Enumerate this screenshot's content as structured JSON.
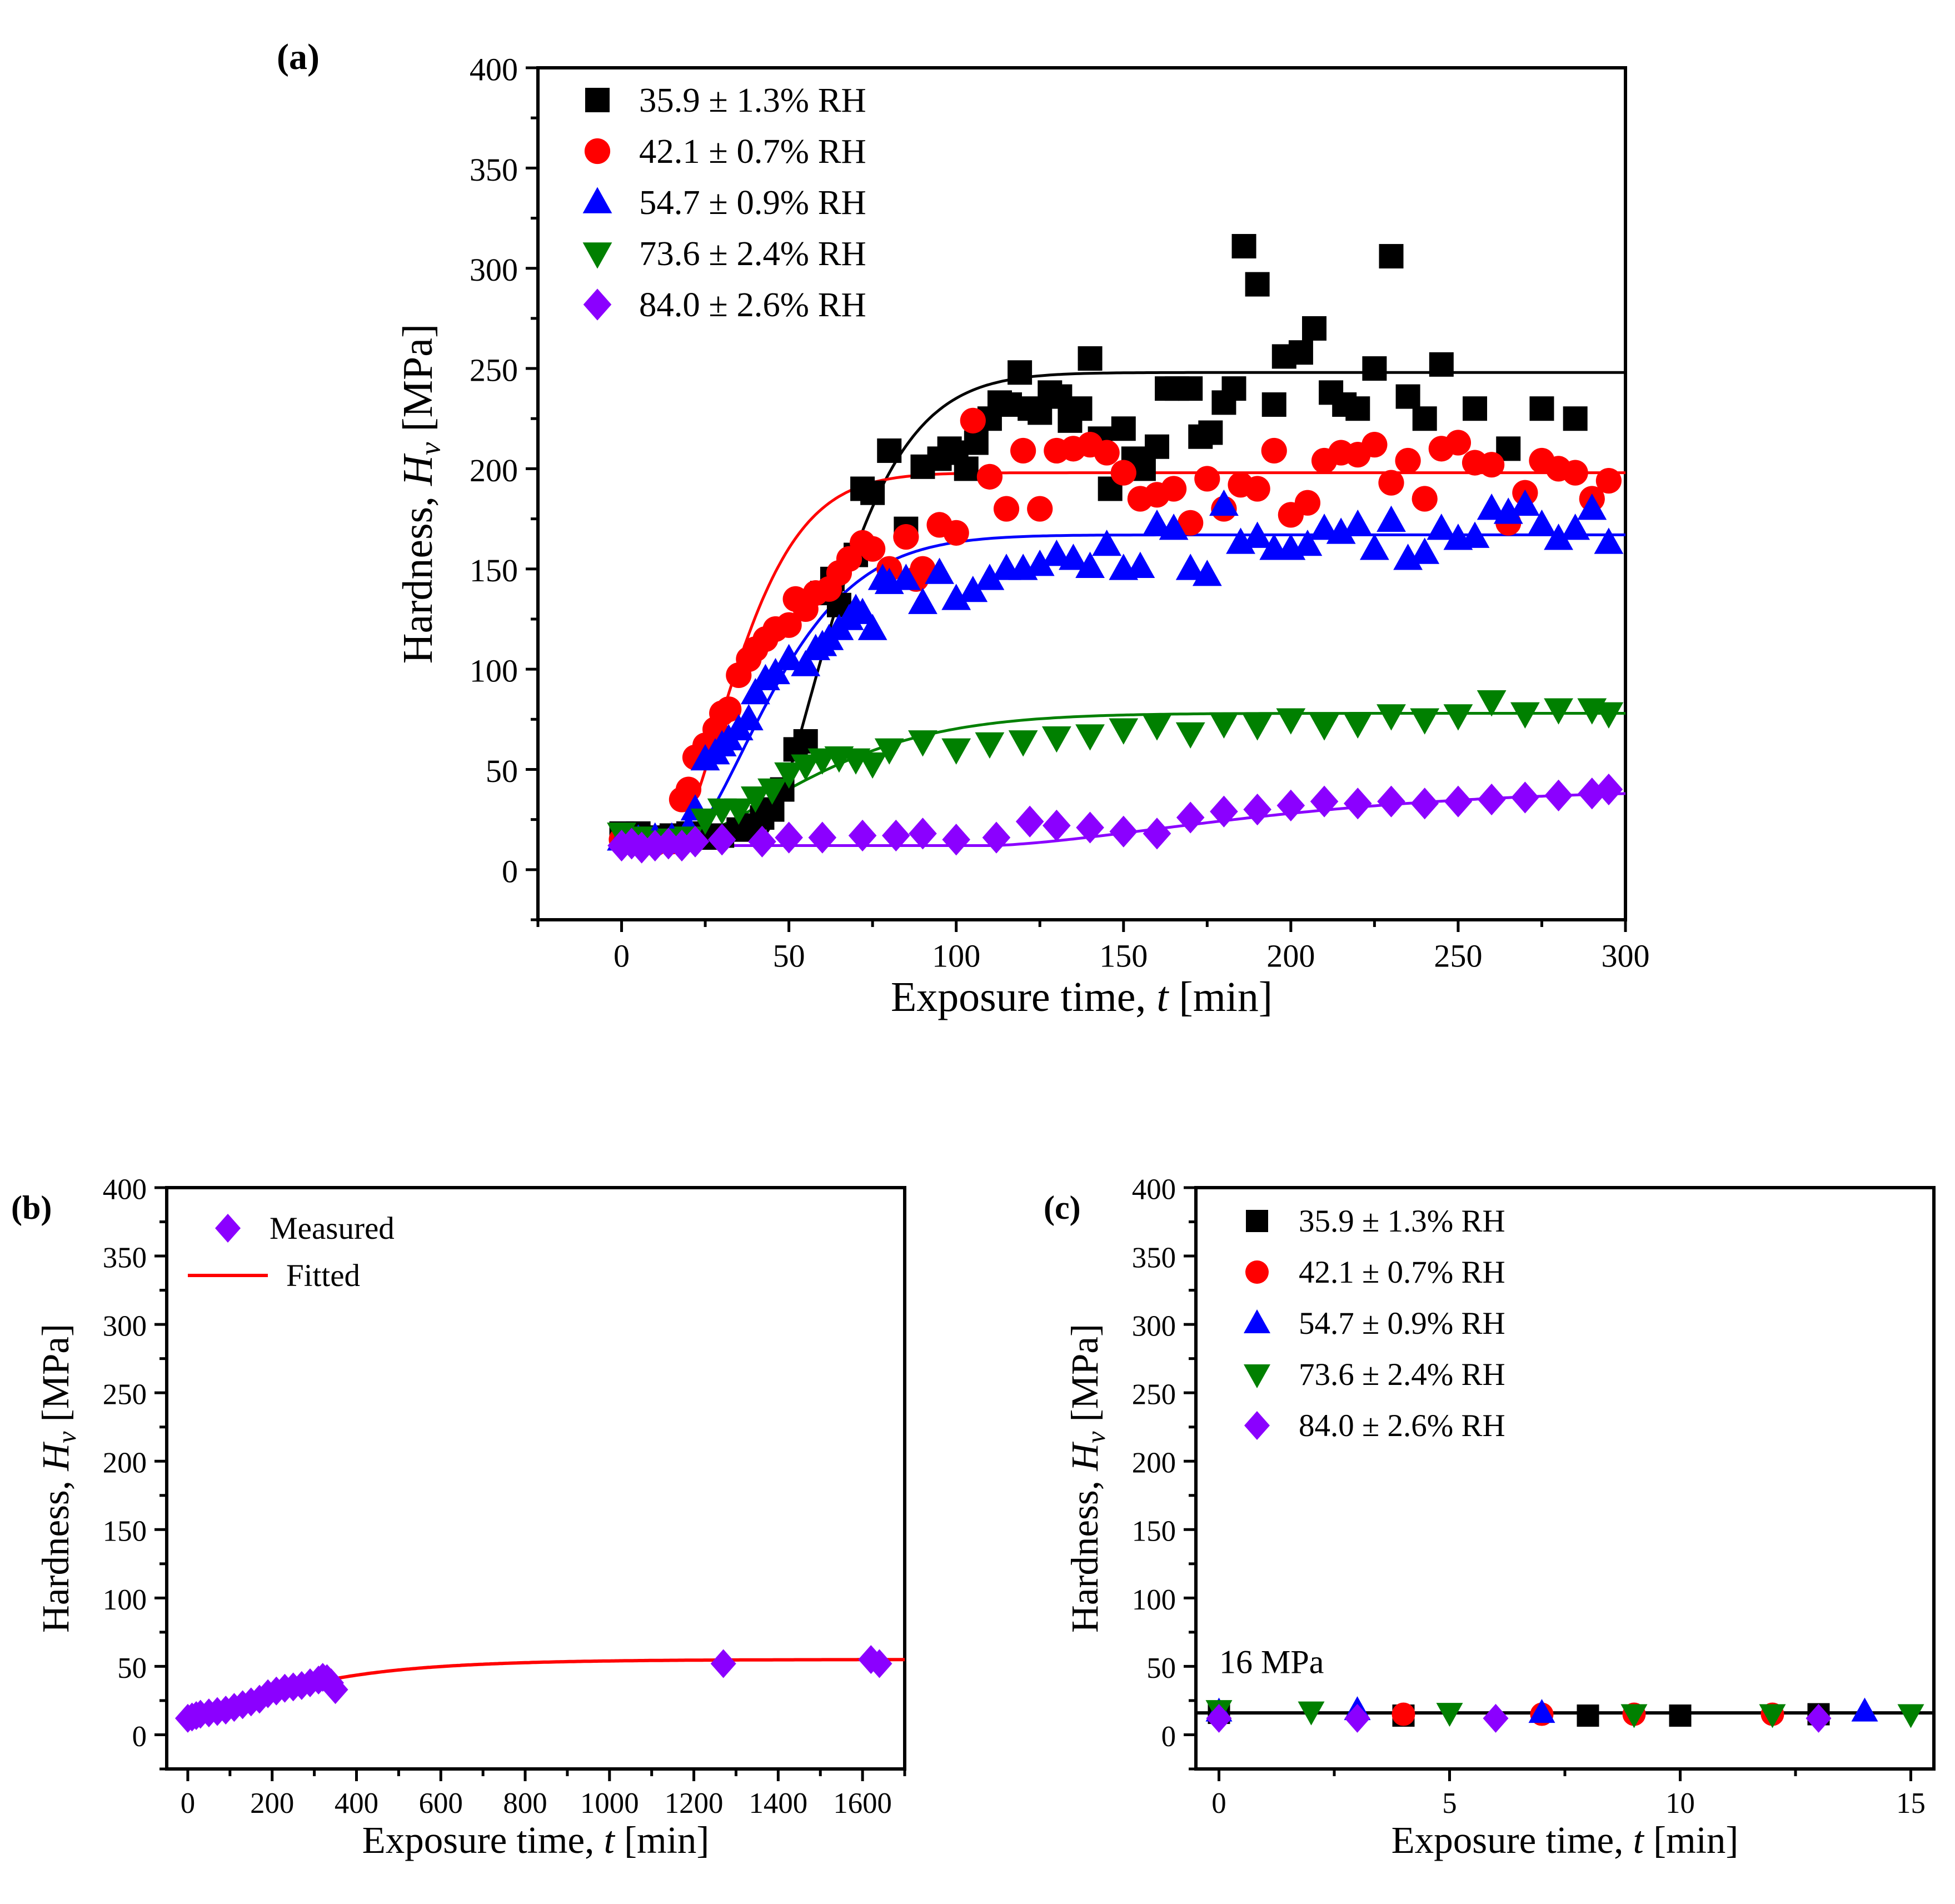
{
  "series_colors": {
    "s1": "#000000",
    "s2": "#ff0000",
    "s3": "#0000ff",
    "s4": "#008000",
    "s5": "#8b00ff",
    "fit": "#ff0000"
  },
  "chart_data": [
    {
      "panel_label": "(a)",
      "type": "scatter",
      "xlabel_prefix": "Exposure time, ",
      "xlabel_var": "t",
      "xlabel_suffix": " [min]",
      "ylabel_prefix": "Hardness, ",
      "ylabel_var": "H",
      "ylabel_sub": "v",
      "ylabel_suffix": " [MPa]",
      "xlim": [
        -25,
        300
      ],
      "ylim": [
        -25,
        400
      ],
      "xticks": [
        0,
        50,
        100,
        150,
        200,
        250,
        300
      ],
      "yticks": [
        0,
        50,
        100,
        150,
        200,
        250,
        300,
        350,
        400
      ],
      "legend_position": "top-left",
      "series": [
        {
          "name": "35.9 ± 1.3% RH",
          "marker": "square",
          "color": "#000000",
          "x": [
            0,
            5,
            10,
            15,
            20,
            25,
            30,
            35,
            38,
            42,
            45,
            48,
            52,
            55,
            60,
            63,
            65,
            70,
            72,
            75,
            80,
            85,
            90,
            95,
            98,
            100,
            103,
            106,
            110,
            113,
            116,
            119,
            122,
            125,
            128,
            131,
            134,
            137,
            140,
            143,
            146,
            150,
            153,
            156,
            160,
            163,
            166,
            170,
            173,
            176,
            180,
            183,
            186,
            190,
            195,
            198,
            203,
            207,
            212,
            216,
            220,
            225,
            230,
            235,
            240,
            245,
            255,
            265,
            275,
            285
          ],
          "y": [
            18,
            18,
            16,
            17,
            18,
            16,
            17,
            20,
            22,
            26,
            30,
            40,
            60,
            64,
            138,
            145,
            132,
            157,
            190,
            188,
            209,
            170,
            201,
            205,
            210,
            208,
            200,
            213,
            225,
            233,
            232,
            248,
            230,
            228,
            238,
            236,
            224,
            230,
            255,
            215,
            190,
            220,
            205,
            200,
            211,
            240,
            240,
            240,
            216,
            218,
            233,
            240,
            311,
            292,
            232,
            256,
            258,
            270,
            238,
            232,
            230,
            250,
            306,
            236,
            225,
            252,
            230,
            210,
            230,
            225
          ],
          "fit": {
            "type": "sigmoid",
            "plateau": 248,
            "start": 16,
            "t0": 42,
            "rate": 0.035
          }
        },
        {
          "name": "42.1 ± 0.7% RH",
          "marker": "circle",
          "color": "#ff0000",
          "x": [
            0,
            5,
            10,
            15,
            18,
            20,
            22,
            25,
            28,
            30,
            32,
            35,
            38,
            40,
            43,
            46,
            50,
            52,
            55,
            58,
            62,
            65,
            68,
            72,
            75,
            80,
            85,
            88,
            90,
            95,
            100,
            105,
            110,
            115,
            120,
            125,
            130,
            135,
            140,
            145,
            150,
            155,
            160,
            165,
            170,
            175,
            180,
            185,
            190,
            195,
            200,
            205,
            210,
            215,
            220,
            225,
            230,
            235,
            240,
            245,
            250,
            255,
            260,
            265,
            270,
            275,
            280,
            285,
            290,
            295
          ],
          "y": [
            15,
            14,
            13,
            14,
            35,
            40,
            56,
            62,
            70,
            78,
            80,
            97,
            105,
            110,
            115,
            120,
            122,
            135,
            130,
            138,
            140,
            148,
            155,
            163,
            160,
            150,
            166,
            145,
            150,
            172,
            168,
            224,
            196,
            180,
            209,
            180,
            209,
            210,
            212,
            208,
            198,
            185,
            187,
            190,
            173,
            195,
            180,
            192,
            190,
            209,
            177,
            183,
            204,
            208,
            207,
            212,
            193,
            204,
            185,
            210,
            213,
            203,
            202,
            173,
            188,
            204,
            200,
            198,
            185,
            194
          ],
          "fit": {
            "type": "sigmoid",
            "plateau": 198,
            "start": 14,
            "t0": 16,
            "rate": 0.04
          }
        },
        {
          "name": "54.7 ± 0.9% RH",
          "marker": "triangle-up",
          "color": "#0000ff",
          "x": [
            0,
            5,
            10,
            15,
            20,
            22,
            25,
            28,
            30,
            32,
            35,
            38,
            40,
            43,
            46,
            50,
            55,
            58,
            60,
            62,
            65,
            68,
            70,
            72,
            75,
            78,
            80,
            85,
            90,
            95,
            100,
            105,
            110,
            115,
            120,
            125,
            130,
            135,
            140,
            145,
            150,
            155,
            160,
            165,
            170,
            175,
            180,
            185,
            190,
            195,
            200,
            205,
            210,
            215,
            220,
            225,
            230,
            235,
            240,
            245,
            250,
            255,
            260,
            265,
            270,
            275,
            280,
            285,
            290,
            295
          ],
          "y": [
            15,
            15,
            16,
            16,
            20,
            30,
            55,
            58,
            62,
            65,
            70,
            75,
            88,
            95,
            98,
            105,
            102,
            110,
            112,
            115,
            120,
            125,
            130,
            128,
            120,
            145,
            143,
            145,
            133,
            148,
            135,
            139,
            145,
            150,
            150,
            152,
            157,
            155,
            151,
            162,
            150,
            151,
            172,
            170,
            150,
            147,
            182,
            163,
            166,
            160,
            160,
            162,
            170,
            168,
            172,
            160,
            174,
            155,
            158,
            170,
            165,
            166,
            180,
            178,
            182,
            172,
            165,
            170,
            180,
            163
          ],
          "fit": {
            "type": "sigmoid",
            "plateau": 167,
            "start": 16,
            "t0": 20,
            "rate": 0.03
          }
        },
        {
          "name": "73.6 ± 2.4% RH",
          "marker": "triangle-down",
          "color": "#008000",
          "x": [
            0,
            5,
            10,
            15,
            20,
            25,
            30,
            35,
            40,
            45,
            50,
            55,
            60,
            65,
            70,
            75,
            80,
            90,
            100,
            110,
            120,
            130,
            140,
            150,
            160,
            170,
            180,
            190,
            200,
            210,
            220,
            230,
            240,
            250,
            260,
            270,
            280,
            290,
            295
          ],
          "y": [
            18,
            16,
            14,
            15,
            16,
            25,
            30,
            30,
            36,
            40,
            48,
            52,
            55,
            56,
            55,
            53,
            60,
            64,
            60,
            63,
            64,
            66,
            67,
            70,
            72,
            68,
            73,
            72,
            75,
            72,
            73,
            77,
            75,
            77,
            84,
            78,
            80,
            80,
            78
          ],
          "fit": {
            "type": "sigmoid",
            "plateau": 78,
            "start": 15,
            "t0": 18,
            "rate": 0.02
          }
        },
        {
          "name": "84.0 ± 2.6% RH",
          "marker": "diamond",
          "color": "#8b00ff",
          "x": [
            0,
            3,
            6,
            10,
            14,
            18,
            22,
            30,
            42,
            50,
            60,
            72,
            82,
            90,
            100,
            112,
            122,
            130,
            140,
            150,
            160,
            170,
            180,
            190,
            200,
            210,
            220,
            230,
            240,
            250,
            260,
            270,
            280,
            290,
            295
          ],
          "y": [
            12,
            13,
            11,
            12,
            13,
            12,
            14,
            15,
            14,
            16,
            16,
            17,
            17,
            18,
            15,
            16,
            24,
            22,
            21,
            19,
            18,
            26,
            29,
            30,
            32,
            34,
            33,
            34,
            33,
            34,
            35,
            36,
            37,
            38,
            40
          ],
          "fit": {
            "type": "sigmoid",
            "plateau": 40,
            "start": 12,
            "t0": 110,
            "rate": 0.01
          }
        }
      ]
    },
    {
      "panel_label": "(b)",
      "type": "scatter",
      "xlabel_prefix": "Exposure time, ",
      "xlabel_var": "t",
      "xlabel_suffix": " [min]",
      "ylabel_prefix": "Hardness, ",
      "ylabel_var": "H",
      "ylabel_sub": "v",
      "ylabel_suffix": " [MPa]",
      "xlim": [
        -50,
        1700
      ],
      "ylim": [
        -25,
        400
      ],
      "xticks": [
        0,
        200,
        400,
        600,
        800,
        1000,
        1200,
        1400,
        1600
      ],
      "yticks": [
        0,
        50,
        100,
        150,
        200,
        250,
        300,
        350,
        400
      ],
      "legend_position": "top-left",
      "series": [
        {
          "name": "Measured",
          "marker": "diamond",
          "color": "#8b00ff",
          "x": [
            0,
            10,
            20,
            30,
            50,
            70,
            90,
            110,
            130,
            150,
            170,
            190,
            210,
            230,
            250,
            270,
            290,
            310,
            320,
            330,
            340,
            350,
            1270,
            1620,
            1640
          ],
          "y": [
            12,
            13,
            14,
            15,
            16,
            17,
            18,
            20,
            22,
            24,
            26,
            30,
            32,
            34,
            35,
            36,
            38,
            40,
            42,
            41,
            38,
            33,
            52,
            55,
            52
          ]
        }
      ],
      "fitted": {
        "name": "Fitted",
        "color": "#ff0000",
        "x_start": 120,
        "x_end": 1700,
        "plateau": 55,
        "start": 20,
        "rate": 0.004
      }
    },
    {
      "panel_label": "(c)",
      "type": "scatter",
      "xlabel_prefix": "Exposure time, ",
      "xlabel_var": "t",
      "xlabel_suffix": " [min]",
      "ylabel_prefix": "Hardness, ",
      "ylabel_var": "H",
      "ylabel_sub": "v",
      "ylabel_suffix": " [MPa]",
      "xlim": [
        -0.5,
        15.5
      ],
      "ylim": [
        -25,
        400
      ],
      "xticks": [
        0,
        5,
        10,
        15
      ],
      "yticks": [
        0,
        50,
        100,
        150,
        200,
        250,
        300,
        350,
        400
      ],
      "legend_position": "top-left",
      "annotation": "16 MPa",
      "reference_line": 16,
      "series": [
        {
          "name": "35.9 ± 1.3% RH",
          "marker": "square",
          "color": "#000000",
          "x": [
            0,
            4,
            8,
            10,
            13
          ],
          "y": [
            16,
            14,
            14,
            14,
            15
          ]
        },
        {
          "name": "42.1 ± 0.7% RH",
          "marker": "circle",
          "color": "#ff0000",
          "x": [
            4,
            7,
            9,
            12
          ],
          "y": [
            15,
            15,
            15,
            15
          ]
        },
        {
          "name": "54.7 ± 0.9% RH",
          "marker": "triangle-up",
          "color": "#0000ff",
          "x": [
            0,
            3,
            7,
            14
          ],
          "y": [
            17,
            18,
            16,
            17
          ]
        },
        {
          "name": "73.6 ± 2.4% RH",
          "marker": "triangle-down",
          "color": "#008000",
          "x": [
            0,
            2,
            5,
            9,
            12,
            15
          ],
          "y": [
            18,
            17,
            16,
            15,
            15,
            15
          ]
        },
        {
          "name": "84.0 ± 2.6% RH",
          "marker": "diamond",
          "color": "#8b00ff",
          "x": [
            0,
            3,
            6,
            13
          ],
          "y": [
            12,
            12,
            12,
            12
          ]
        }
      ]
    }
  ]
}
